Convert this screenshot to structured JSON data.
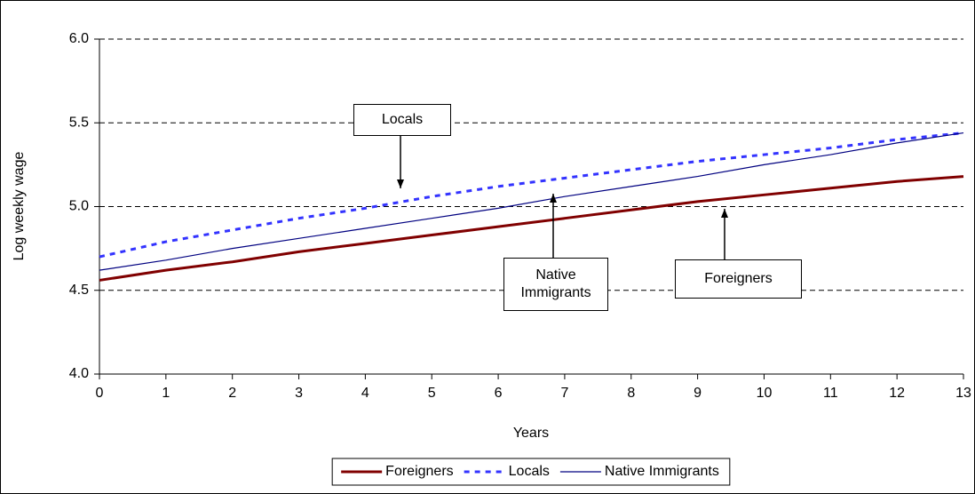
{
  "chart_data": {
    "type": "line",
    "y_label": "Log weekly wage",
    "x_label": "Years",
    "x": [
      0,
      1,
      2,
      3,
      4,
      5,
      6,
      7,
      8,
      9,
      10,
      11,
      12,
      13
    ],
    "xlim": [
      0,
      13
    ],
    "xticks": [
      0,
      1,
      2,
      3,
      4,
      5,
      6,
      7,
      8,
      9,
      10,
      11,
      12,
      13
    ],
    "ylim": [
      4,
      6
    ],
    "yticks": [
      {
        "value": 4,
        "label": "4.0"
      },
      4.5,
      {
        "value": 5,
        "label": "5.0"
      },
      5.5,
      {
        "value": 6,
        "label": "6.0"
      }
    ],
    "grid": true,
    "legend": "bottom",
    "series": [
      {
        "name": "Foreigners",
        "color": "#800000",
        "style": "solid",
        "values": [
          4.56,
          4.62,
          4.67,
          4.73,
          4.78,
          4.83,
          4.88,
          4.93,
          4.98,
          5.03,
          5.07,
          5.11,
          5.15,
          5.18
        ]
      },
      {
        "name": "Locals",
        "color": "#3333ff",
        "style": "dashed",
        "values": [
          4.7,
          4.79,
          4.86,
          4.93,
          4.99,
          5.06,
          5.12,
          5.17,
          5.22,
          5.27,
          5.31,
          5.35,
          5.4,
          5.44
        ]
      },
      {
        "name": "Native Immigrants",
        "color": "#000080",
        "style": "thin",
        "values": [
          4.62,
          4.68,
          4.75,
          4.81,
          4.87,
          4.93,
          4.99,
          5.06,
          5.12,
          5.18,
          5.25,
          5.31,
          5.38,
          5.44
        ]
      }
    ],
    "annotations": [
      "Locals",
      "Native Immigrants",
      "Foreigners"
    ]
  }
}
